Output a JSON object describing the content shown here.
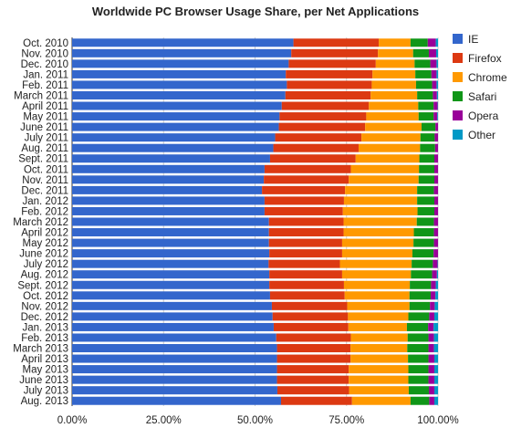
{
  "chart_data": {
    "type": "bar",
    "orientation": "horizontal",
    "stacked": true,
    "title": "Worldwide PC Browser Usage Share, per Net Applications",
    "xlabel": "",
    "ylabel": "",
    "xlim": [
      0,
      1
    ],
    "x_tick_labels": [
      "0.00%",
      "25.00%",
      "50.00%",
      "75.00%",
      "100.00%"
    ],
    "x_ticks": [
      0,
      0.25,
      0.5,
      0.75,
      1
    ],
    "grid": true,
    "legend": "right",
    "categories": [
      "Oct. 2010",
      "Nov. 2010",
      "Dec. 2010",
      "Jan. 2011",
      "Feb. 2011",
      "March 2011",
      "April 2011",
      "May 2011",
      "June 2011",
      "July 2011",
      "Aug. 2011",
      "Sept. 2011",
      "Oct. 2011",
      "Nov. 2011",
      "Dec. 2011",
      "Jan. 2012",
      "Feb. 2012",
      "March 2012",
      "April 2012",
      "May 2012",
      "June 2012",
      "July 2012",
      "Aug. 2012",
      "Sept. 2012",
      "Oct. 2012",
      "Nov. 2012",
      "Dec. 2012",
      "Jan. 2013",
      "Feb. 2013",
      "March 2013",
      "April 2013",
      "May 2013",
      "June 2013",
      "July 2013",
      "Aug. 2013"
    ],
    "series": [
      {
        "name": "IE",
        "color": "#3366cc",
        "values": [
          0.605,
          0.599,
          0.592,
          0.584,
          0.587,
          0.583,
          0.573,
          0.567,
          0.565,
          0.555,
          0.55,
          0.541,
          0.526,
          0.524,
          0.519,
          0.526,
          0.526,
          0.538,
          0.538,
          0.538,
          0.539,
          0.537,
          0.539,
          0.539,
          0.541,
          0.546,
          0.548,
          0.551,
          0.558,
          0.56,
          0.56,
          0.56,
          0.56,
          0.561,
          0.571
        ]
      },
      {
        "name": "Firefox",
        "color": "#dc3912",
        "values": [
          0.233,
          0.237,
          0.238,
          0.237,
          0.232,
          0.233,
          0.238,
          0.237,
          0.236,
          0.236,
          0.233,
          0.234,
          0.236,
          0.232,
          0.227,
          0.217,
          0.214,
          0.204,
          0.204,
          0.2,
          0.199,
          0.195,
          0.199,
          0.204,
          0.204,
          0.206,
          0.206,
          0.204,
          0.204,
          0.201,
          0.201,
          0.196,
          0.196,
          0.196,
          0.194
        ]
      },
      {
        "name": "Chrome",
        "color": "#ff9900",
        "values": [
          0.087,
          0.096,
          0.106,
          0.117,
          0.121,
          0.127,
          0.135,
          0.143,
          0.154,
          0.161,
          0.168,
          0.174,
          0.186,
          0.191,
          0.197,
          0.2,
          0.204,
          0.2,
          0.192,
          0.195,
          0.192,
          0.196,
          0.188,
          0.18,
          0.177,
          0.17,
          0.165,
          0.16,
          0.155,
          0.155,
          0.157,
          0.163,
          0.163,
          0.163,
          0.16
        ]
      },
      {
        "name": "Safari",
        "color": "#109618",
        "values": [
          0.047,
          0.043,
          0.043,
          0.044,
          0.044,
          0.043,
          0.042,
          0.041,
          0.038,
          0.039,
          0.041,
          0.041,
          0.042,
          0.043,
          0.046,
          0.047,
          0.046,
          0.047,
          0.055,
          0.056,
          0.058,
          0.058,
          0.058,
          0.058,
          0.058,
          0.056,
          0.057,
          0.058,
          0.057,
          0.058,
          0.056,
          0.055,
          0.055,
          0.055,
          0.051
        ]
      },
      {
        "name": "Opera",
        "color": "#990099",
        "values": [
          0.022,
          0.02,
          0.017,
          0.014,
          0.012,
          0.011,
          0.011,
          0.01,
          0.012,
          0.013,
          0.013,
          0.013,
          0.013,
          0.013,
          0.014,
          0.013,
          0.013,
          0.013,
          0.013,
          0.013,
          0.013,
          0.013,
          0.013,
          0.013,
          0.013,
          0.013,
          0.014,
          0.015,
          0.015,
          0.015,
          0.016,
          0.016,
          0.016,
          0.015,
          0.014
        ]
      },
      {
        "name": "Other",
        "color": "#0099c6",
        "values": [
          0.006,
          0.005,
          0.004,
          0.004,
          0.004,
          0.003,
          0.001,
          0.002,
          0.005,
          0.006,
          0.005,
          0.007,
          0.007,
          0.007,
          0.007,
          0.007,
          0.007,
          0.008,
          0.008,
          0.008,
          0.009,
          0.009,
          0.008,
          0.008,
          0.008,
          0.009,
          0.01,
          0.012,
          0.011,
          0.011,
          0.01,
          0.01,
          0.01,
          0.01,
          0.01
        ]
      }
    ]
  }
}
